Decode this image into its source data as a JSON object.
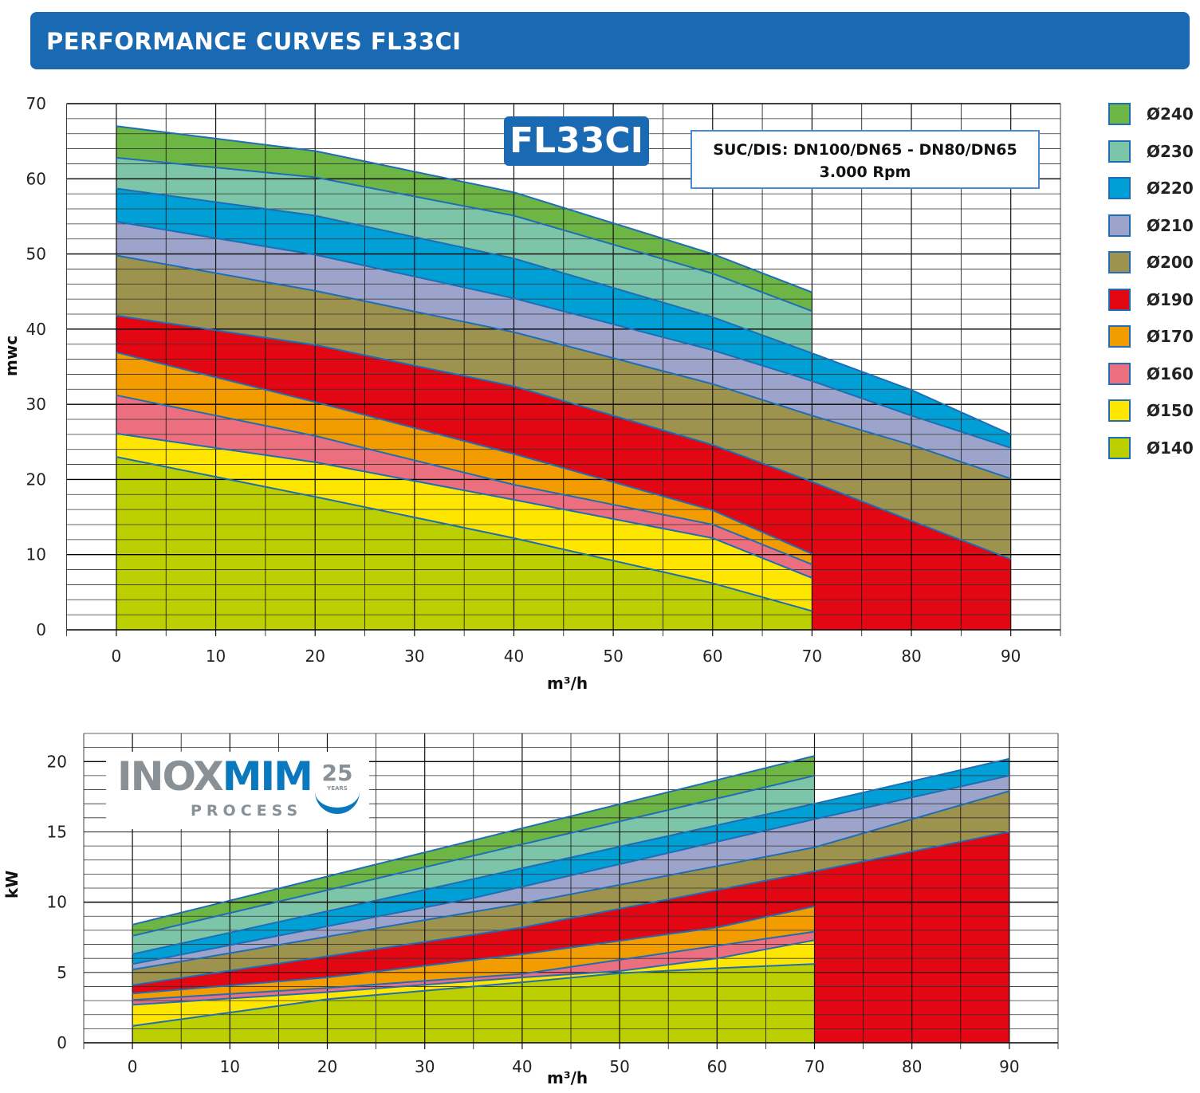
{
  "header": {
    "title": "PERFORMANCE CURVES FL33CI"
  },
  "model_badge": "FL33CI",
  "info_box": {
    "line1": "SUC/DIS: DN100/DN65 - DN80/DN65",
    "line2": "3.000 Rpm"
  },
  "logo": {
    "text_a": "INOX",
    "text_b": "MIM",
    "text_c": "PROCESS",
    "years": "25",
    "years_label": "YEARS"
  },
  "legend": [
    {
      "label": "Ø240",
      "color": "#6db544"
    },
    {
      "label": "Ø230",
      "color": "#7dc5a8"
    },
    {
      "label": "Ø220",
      "color": "#00a0d6"
    },
    {
      "label": "Ø210",
      "color": "#9ca4cc"
    },
    {
      "label": "Ø200",
      "color": "#9e934e"
    },
    {
      "label": "Ø190",
      "color": "#e30613"
    },
    {
      "label": "Ø170",
      "color": "#f39c00"
    },
    {
      "label": "Ø160",
      "color": "#ec6f80"
    },
    {
      "label": "Ø150",
      "color": "#ffe600"
    },
    {
      "label": "Ø140",
      "color": "#bccf00"
    }
  ],
  "line_color": "#1f6db5",
  "chart_data": [
    {
      "type": "area",
      "xlabel": "m³/h",
      "ylabel": "mwc",
      "xlim": [
        -5,
        95
      ],
      "ylim": [
        0,
        70
      ],
      "xticks": [
        0,
        10,
        20,
        30,
        40,
        50,
        60,
        70,
        80,
        90
      ],
      "yticks": [
        0,
        10,
        20,
        30,
        40,
        50,
        60,
        70
      ],
      "grid": true,
      "legend_position": "right",
      "series": [
        {
          "name": "Ø240",
          "points": [
            [
              0,
              67.0
            ],
            [
              20,
              63.7
            ],
            [
              40,
              58.2
            ],
            [
              60,
              50.0
            ],
            [
              70,
              44.9
            ]
          ]
        },
        {
          "name": "Ø230",
          "points": [
            [
              0,
              62.8
            ],
            [
              20,
              60.2
            ],
            [
              40,
              55.1
            ],
            [
              60,
              47.4
            ],
            [
              70,
              42.4
            ]
          ]
        },
        {
          "name": "Ø220",
          "points": [
            [
              0,
              58.7
            ],
            [
              20,
              55.1
            ],
            [
              40,
              49.4
            ],
            [
              60,
              41.6
            ],
            [
              70,
              36.8
            ],
            [
              80,
              31.9
            ],
            [
              90,
              26.0
            ]
          ]
        },
        {
          "name": "Ø210",
          "points": [
            [
              0,
              54.3
            ],
            [
              20,
              49.9
            ],
            [
              40,
              44.1
            ],
            [
              60,
              37.2
            ],
            [
              70,
              33.1
            ],
            [
              80,
              28.5
            ],
            [
              90,
              24.2
            ]
          ]
        },
        {
          "name": "Ø200",
          "points": [
            [
              0,
              49.8
            ],
            [
              20,
              45.1
            ],
            [
              40,
              39.6
            ],
            [
              60,
              32.7
            ],
            [
              70,
              28.5
            ],
            [
              80,
              24.6
            ],
            [
              90,
              20.1
            ]
          ]
        },
        {
          "name": "Ø190",
          "points": [
            [
              0,
              41.8
            ],
            [
              20,
              37.9
            ],
            [
              40,
              32.4
            ],
            [
              60,
              24.6
            ],
            [
              70,
              19.7
            ],
            [
              80,
              14.5
            ],
            [
              90,
              9.4
            ]
          ]
        },
        {
          "name": "Ø170",
          "points": [
            [
              0,
              36.9
            ],
            [
              20,
              30.3
            ],
            [
              40,
              23.4
            ],
            [
              60,
              15.9
            ],
            [
              70,
              10.1
            ]
          ]
        },
        {
          "name": "Ø160",
          "points": [
            [
              0,
              31.2
            ],
            [
              20,
              25.8
            ],
            [
              40,
              19.3
            ],
            [
              60,
              14.0
            ],
            [
              70,
              8.7
            ]
          ]
        },
        {
          "name": "Ø150",
          "points": [
            [
              0,
              26.1
            ],
            [
              20,
              22.3
            ],
            [
              40,
              17.3
            ],
            [
              60,
              12.2
            ],
            [
              70,
              6.9
            ]
          ]
        },
        {
          "name": "Ø140",
          "points": [
            [
              0,
              23.0
            ],
            [
              20,
              17.7
            ],
            [
              40,
              12.2
            ],
            [
              60,
              6.2
            ],
            [
              70,
              2.5
            ]
          ]
        }
      ]
    },
    {
      "type": "area",
      "xlabel": "m³/h",
      "ylabel": "kW",
      "xlim": [
        -5,
        95
      ],
      "ylim": [
        0,
        22
      ],
      "xticks": [
        0,
        10,
        20,
        30,
        40,
        50,
        60,
        70,
        80,
        90
      ],
      "yticks": [
        0,
        5,
        10,
        15,
        20
      ],
      "grid": true,
      "series": [
        {
          "name": "Ø240",
          "points": [
            [
              0,
              8.4
            ],
            [
              70,
              20.4
            ]
          ]
        },
        {
          "name": "Ø230",
          "points": [
            [
              0,
              7.6
            ],
            [
              70,
              19.0
            ]
          ]
        },
        {
          "name": "Ø220",
          "points": [
            [
              0,
              6.3
            ],
            [
              70,
              17.0
            ],
            [
              90,
              20.2
            ]
          ]
        },
        {
          "name": "Ø210",
          "points": [
            [
              0,
              5.6
            ],
            [
              35,
              10.3
            ],
            [
              70,
              15.9
            ],
            [
              90,
              19.0
            ]
          ]
        },
        {
          "name": "Ø200",
          "points": [
            [
              0,
              5.2
            ],
            [
              40,
              9.9
            ],
            [
              70,
              13.9
            ],
            [
              90,
              17.9
            ]
          ]
        },
        {
          "name": "Ø190",
          "points": [
            [
              0,
              4.1
            ],
            [
              40,
              8.2
            ],
            [
              70,
              12.2
            ],
            [
              90,
              15.0
            ]
          ]
        },
        {
          "name": "Ø170",
          "points": [
            [
              0,
              3.5
            ],
            [
              20,
              4.65
            ],
            [
              40,
              6.3
            ],
            [
              60,
              8.2
            ],
            [
              70,
              9.7
            ]
          ]
        },
        {
          "name": "Ø160",
          "points": [
            [
              0,
              3.05
            ],
            [
              20,
              3.9
            ],
            [
              40,
              4.9
            ],
            [
              60,
              6.9
            ],
            [
              70,
              7.9
            ]
          ]
        },
        {
          "name": "Ø150",
          "points": [
            [
              0,
              2.7
            ],
            [
              20,
              3.6
            ],
            [
              40,
              4.65
            ],
            [
              50,
              5.1
            ],
            [
              60,
              6.0
            ],
            [
              70,
              7.3
            ]
          ]
        },
        {
          "name": "Ø140",
          "points": [
            [
              0,
              1.2
            ],
            [
              20,
              3.1
            ],
            [
              40,
              4.3
            ],
            [
              50,
              4.95
            ],
            [
              60,
              5.3
            ],
            [
              70,
              5.6
            ]
          ]
        }
      ]
    }
  ]
}
